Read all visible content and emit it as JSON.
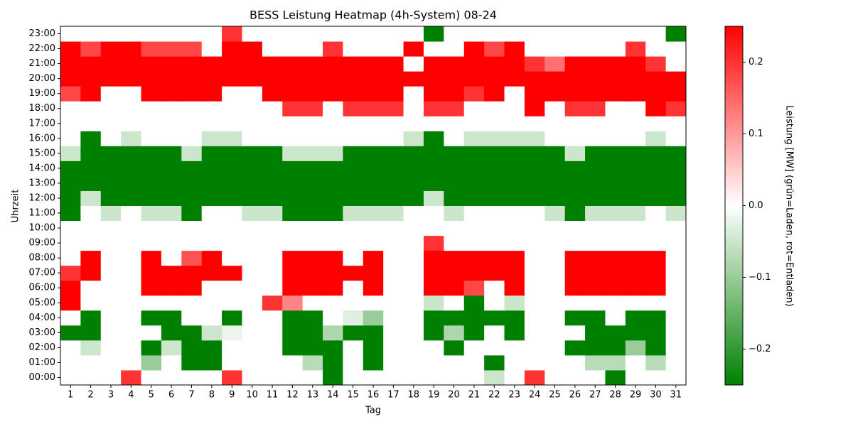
{
  "chart_data": {
    "type": "heatmap",
    "title": "BESS Leistung Heatmap (4h-System) 08-24",
    "x_label": "Tag",
    "y_label": "Uhrzeit",
    "categories": [
      1,
      2,
      3,
      4,
      5,
      6,
      7,
      8,
      9,
      10,
      11,
      12,
      13,
      14,
      15,
      16,
      17,
      18,
      19,
      20,
      21,
      22,
      23,
      24,
      25,
      26,
      27,
      28,
      29,
      30,
      31
    ],
    "y_categories": [
      "00:00",
      "01:00",
      "02:00",
      "03:00",
      "04:00",
      "05:00",
      "06:00",
      "07:00",
      "08:00",
      "09:00",
      "10:00",
      "11:00",
      "12:00",
      "13:00",
      "14:00",
      "15:00",
      "16:00",
      "17:00",
      "18:00",
      "19:00",
      "20:00",
      "21:00",
      "22:00",
      "23:00"
    ],
    "values": [
      [
        0,
        0,
        0,
        0.2,
        0,
        0,
        0,
        0,
        0.2,
        0,
        0,
        0,
        0,
        -0.25,
        0,
        0,
        0,
        0,
        0,
        0,
        0,
        -0.05,
        0,
        0.2,
        0,
        0,
        0,
        -0.25,
        0,
        0,
        0
      ],
      [
        0,
        0,
        0,
        0,
        -0.1,
        0,
        -0.25,
        -0.25,
        0,
        0,
        0,
        0,
        -0.07,
        -0.25,
        0,
        -0.25,
        0,
        0,
        0,
        0,
        0,
        -0.25,
        0,
        0,
        0,
        0,
        -0.07,
        -0.07,
        0,
        -0.07,
        0
      ],
      [
        0,
        -0.05,
        0,
        0,
        -0.25,
        -0.05,
        -0.25,
        -0.25,
        0,
        0,
        0,
        -0.25,
        -0.25,
        -0.25,
        0,
        -0.25,
        0,
        0,
        0,
        -0.25,
        0,
        0,
        0,
        0,
        0,
        -0.25,
        -0.25,
        -0.25,
        -0.1,
        -0.25,
        0
      ],
      [
        -0.25,
        -0.25,
        0,
        0,
        0,
        -0.25,
        -0.25,
        -0.05,
        -0.02,
        0,
        0,
        -0.25,
        -0.25,
        -0.08,
        -0.25,
        -0.25,
        0,
        0,
        -0.25,
        -0.08,
        -0.25,
        0,
        -0.25,
        0,
        0,
        0,
        -0.25,
        -0.25,
        -0.25,
        -0.25,
        0
      ],
      [
        0,
        -0.25,
        0,
        0,
        -0.25,
        -0.25,
        0,
        0,
        -0.25,
        0,
        0,
        -0.25,
        -0.25,
        0,
        -0.03,
        -0.1,
        0,
        0,
        -0.25,
        -0.25,
        -0.25,
        -0.25,
        -0.25,
        0,
        0,
        -0.25,
        -0.25,
        0,
        -0.25,
        -0.25,
        0
      ],
      [
        0.25,
        0,
        0,
        0,
        0,
        0,
        0,
        0,
        0,
        0,
        0.2,
        0.12,
        0,
        0,
        0,
        0,
        0,
        0,
        -0.05,
        0,
        -0.25,
        0,
        -0.05,
        0,
        0,
        0,
        0,
        0,
        0,
        0,
        0
      ],
      [
        0.25,
        0,
        0,
        0,
        0.25,
        0.25,
        0.25,
        0,
        0,
        0,
        0,
        0.25,
        0.25,
        0.25,
        0,
        0.25,
        0,
        0,
        0.25,
        0.25,
        0.18,
        0,
        0.25,
        0,
        0,
        0.25,
        0.25,
        0.25,
        0.25,
        0.25,
        0
      ],
      [
        0.2,
        0.25,
        0,
        0,
        0.25,
        0.25,
        0.25,
        0.25,
        0.25,
        0,
        0,
        0.25,
        0.25,
        0.25,
        0.25,
        0.25,
        0,
        0,
        0.25,
        0.25,
        0.25,
        0.25,
        0.25,
        0,
        0,
        0.25,
        0.25,
        0.25,
        0.25,
        0.25,
        0
      ],
      [
        0,
        0.25,
        0,
        0,
        0.25,
        0,
        0.17,
        0.25,
        0,
        0,
        0,
        0.25,
        0.25,
        0.25,
        0,
        0.25,
        0,
        0,
        0.25,
        0.25,
        0.25,
        0.25,
        0.25,
        0,
        0,
        0.25,
        0.25,
        0.25,
        0.25,
        0.25,
        0
      ],
      [
        0,
        0,
        0,
        0,
        0,
        0,
        0,
        0,
        0,
        0,
        0,
        0,
        0,
        0,
        0,
        0,
        0,
        0,
        0.2,
        0,
        0,
        0,
        0,
        0,
        0,
        0,
        0,
        0,
        0,
        0,
        0
      ],
      [
        0,
        0,
        0,
        0,
        0,
        0,
        0,
        0,
        0,
        0,
        0,
        0,
        0,
        0,
        0,
        0,
        0,
        0,
        0,
        0,
        0,
        0,
        0,
        0,
        0,
        0,
        0,
        0,
        0,
        0,
        0
      ],
      [
        -0.25,
        0,
        -0.05,
        0,
        -0.05,
        -0.05,
        -0.25,
        0,
        0,
        -0.05,
        -0.05,
        -0.25,
        -0.25,
        -0.25,
        -0.05,
        -0.05,
        -0.05,
        0,
        0,
        -0.05,
        0,
        0,
        0,
        0,
        -0.05,
        -0.25,
        -0.05,
        -0.05,
        -0.05,
        0,
        -0.05
      ],
      [
        -0.25,
        -0.05,
        -0.25,
        -0.25,
        -0.25,
        -0.25,
        -0.25,
        -0.25,
        -0.25,
        -0.25,
        -0.25,
        -0.25,
        -0.25,
        -0.25,
        -0.25,
        -0.25,
        -0.25,
        -0.25,
        -0.05,
        -0.25,
        -0.25,
        -0.25,
        -0.25,
        -0.25,
        -0.25,
        -0.25,
        -0.25,
        -0.25,
        -0.25,
        -0.25,
        -0.25
      ],
      [
        -0.25,
        -0.25,
        -0.25,
        -0.25,
        -0.25,
        -0.25,
        -0.25,
        -0.25,
        -0.25,
        -0.25,
        -0.25,
        -0.25,
        -0.25,
        -0.25,
        -0.25,
        -0.25,
        -0.25,
        -0.25,
        -0.25,
        -0.25,
        -0.25,
        -0.25,
        -0.25,
        -0.25,
        -0.25,
        -0.25,
        -0.25,
        -0.25,
        -0.25,
        -0.25,
        -0.25
      ],
      [
        -0.25,
        -0.25,
        -0.25,
        -0.25,
        -0.25,
        -0.25,
        -0.25,
        -0.25,
        -0.25,
        -0.25,
        -0.25,
        -0.25,
        -0.25,
        -0.25,
        -0.25,
        -0.25,
        -0.25,
        -0.25,
        -0.25,
        -0.25,
        -0.25,
        -0.25,
        -0.25,
        -0.25,
        -0.25,
        -0.25,
        -0.25,
        -0.25,
        -0.25,
        -0.25,
        -0.25
      ],
      [
        -0.05,
        -0.25,
        -0.25,
        -0.25,
        -0.25,
        -0.25,
        -0.05,
        -0.25,
        -0.25,
        -0.25,
        -0.25,
        -0.05,
        -0.05,
        -0.05,
        -0.25,
        -0.25,
        -0.25,
        -0.25,
        -0.25,
        -0.25,
        -0.25,
        -0.25,
        -0.25,
        -0.25,
        -0.25,
        -0.05,
        -0.25,
        -0.25,
        -0.25,
        -0.25,
        -0.25
      ],
      [
        0,
        -0.25,
        0,
        -0.05,
        0,
        0,
        0,
        -0.05,
        -0.05,
        0,
        0,
        0,
        0,
        0,
        0,
        0,
        0,
        -0.05,
        -0.25,
        0,
        -0.05,
        -0.05,
        -0.05,
        -0.05,
        0,
        0,
        0,
        0,
        0,
        -0.05,
        0
      ],
      [
        0,
        0,
        0,
        0,
        0,
        0,
        0,
        0,
        0,
        0,
        0,
        0,
        0,
        0,
        0,
        0,
        0,
        0,
        0,
        0,
        0,
        0,
        0,
        0,
        0,
        0,
        0,
        0,
        0,
        0,
        0
      ],
      [
        0,
        0,
        0,
        0,
        0,
        0,
        0,
        0,
        0,
        0,
        0,
        0.2,
        0.2,
        0,
        0.2,
        0.2,
        0.2,
        0,
        0.2,
        0.2,
        0,
        0,
        0,
        0.25,
        0,
        0.2,
        0.2,
        0,
        0,
        0.25,
        0.2
      ],
      [
        0.18,
        0.25,
        0,
        0,
        0.25,
        0.25,
        0.25,
        0.25,
        0,
        0,
        0.25,
        0.25,
        0.25,
        0.25,
        0.25,
        0.25,
        0.25,
        0,
        0.25,
        0.25,
        0.2,
        0.25,
        0,
        0.25,
        0.25,
        0.25,
        0.25,
        0.25,
        0.25,
        0.25,
        0.25
      ],
      [
        0.25,
        0.25,
        0.25,
        0.25,
        0.25,
        0.25,
        0.25,
        0.25,
        0.25,
        0.25,
        0.25,
        0.25,
        0.25,
        0.25,
        0.25,
        0.25,
        0.25,
        0.25,
        0.25,
        0.25,
        0.25,
        0.25,
        0.25,
        0.25,
        0.25,
        0.25,
        0.25,
        0.25,
        0.25,
        0.25,
        0.25
      ],
      [
        0.25,
        0.25,
        0.25,
        0.25,
        0.25,
        0.25,
        0.25,
        0.25,
        0.25,
        0.25,
        0.25,
        0.25,
        0.25,
        0.25,
        0.25,
        0.25,
        0.25,
        0,
        0.25,
        0.25,
        0.25,
        0.25,
        0.25,
        0.2,
        0.14,
        0.25,
        0.25,
        0.25,
        0.25,
        0.2,
        0
      ],
      [
        0.25,
        0.18,
        0.25,
        0.25,
        0.18,
        0.18,
        0.18,
        0,
        0.25,
        0.25,
        0,
        0,
        0,
        0.2,
        0,
        0,
        0,
        0.25,
        0,
        0,
        0.25,
        0.18,
        0.25,
        0,
        0,
        0,
        0,
        0,
        0.2,
        0,
        0
      ],
      [
        0,
        0,
        0,
        0,
        0,
        0,
        0,
        0,
        0.2,
        0,
        0,
        0,
        0,
        0,
        0,
        0,
        0,
        0,
        -0.25,
        0,
        0,
        0,
        0,
        0,
        0,
        0,
        0,
        0,
        0,
        0,
        -0.25
      ]
    ],
    "colors": [
      "#008000",
      "#ffffff",
      "#ff0000"
    ],
    "zlim": [
      -0.25,
      0.25
    ],
    "zticks": [
      {
        "value": -0.2,
        "label": "−0.2"
      },
      {
        "value": -0.1,
        "label": "−0.1"
      },
      {
        "value": 0,
        "label": "0.0"
      },
      0.1,
      0.2
    ],
    "colorbar_label": "Leistung [MW] (grün=Laden, rot=Entladen)"
  }
}
